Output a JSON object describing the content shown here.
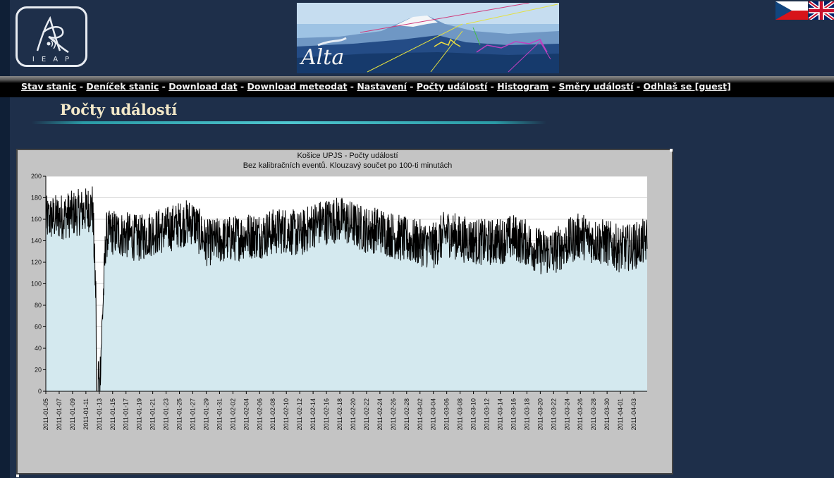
{
  "brand": {
    "logo_text": "IEAP",
    "banner_text": "Alta"
  },
  "flags": {
    "cz": "Czech flag",
    "uk": "UK flag"
  },
  "nav": {
    "items": [
      {
        "label": "Stav stanic"
      },
      {
        "label": "Deníček stanic"
      },
      {
        "label": "Download dat"
      },
      {
        "label": "Download meteodat"
      },
      {
        "label": "Nastavení"
      },
      {
        "label": "Počty událostí"
      },
      {
        "label": "Histogram"
      },
      {
        "label": "Směry událostí"
      },
      {
        "label": "Odhlaš se [guest]"
      }
    ],
    "separator": " - "
  },
  "page": {
    "title": "Počty událostí"
  },
  "colors": {
    "background": "#1e2f4a",
    "chart_frame": "#c4c4c4",
    "plot_fill": "#d4e9ef",
    "series": "#000000",
    "title_text": "#f2e8c8"
  },
  "chart_data": {
    "type": "line",
    "title": "Košice UPJS - Počty událostí",
    "subtitle": "Bez kalibračních eventů. Klouzavý součet po 100-ti minutách",
    "xlabel": "",
    "ylabel": "",
    "ylim": [
      0,
      200
    ],
    "yticks": [
      0,
      20,
      40,
      60,
      80,
      100,
      120,
      140,
      160,
      180,
      200
    ],
    "x_range": [
      "2011-01-05",
      "2011-04-05"
    ],
    "xticks": [
      "2011-01-05",
      "2011-01-07",
      "2011-01-09",
      "2011-01-11",
      "2011-01-13",
      "2011-01-15",
      "2011-01-17",
      "2011-01-19",
      "2011-01-21",
      "2011-01-23",
      "2011-01-25",
      "2011-01-27",
      "2011-01-29",
      "2011-01-31",
      "2011-02-02",
      "2011-02-04",
      "2011-02-06",
      "2011-02-08",
      "2011-02-10",
      "2011-02-12",
      "2011-02-14",
      "2011-02-16",
      "2011-02-18",
      "2011-02-20",
      "2011-02-22",
      "2011-02-24",
      "2011-02-26",
      "2011-02-28",
      "2011-03-02",
      "2011-03-04",
      "2011-03-06",
      "2011-03-08",
      "2011-03-10",
      "2011-03-12",
      "2011-03-14",
      "2011-03-16",
      "2011-03-18",
      "2011-03-20",
      "2011-03-22",
      "2011-03-24",
      "2011-03-26",
      "2011-03-28",
      "2011-03-30",
      "2011-04-01",
      "2011-04-03"
    ],
    "grid": true,
    "series": [
      {
        "x": [
          "2011-01-05",
          "2011-01-07",
          "2011-01-09",
          "2011-01-11",
          "2011-01-12",
          "2011-01-13",
          "2011-01-14",
          "2011-01-15",
          "2011-01-17",
          "2011-01-19",
          "2011-01-21",
          "2011-01-23",
          "2011-01-25",
          "2011-01-27",
          "2011-01-29",
          "2011-01-31",
          "2011-02-02",
          "2011-02-04",
          "2011-02-06",
          "2011-02-08",
          "2011-02-10",
          "2011-02-12",
          "2011-02-14",
          "2011-02-16",
          "2011-02-18",
          "2011-02-20",
          "2011-02-22",
          "2011-02-24",
          "2011-02-26",
          "2011-02-28",
          "2011-03-02",
          "2011-03-04",
          "2011-03-06",
          "2011-03-08",
          "2011-03-10",
          "2011-03-12",
          "2011-03-14",
          "2011-03-16",
          "2011-03-18",
          "2011-03-20",
          "2011-03-22",
          "2011-03-24",
          "2011-03-26",
          "2011-03-28",
          "2011-03-30",
          "2011-04-01",
          "2011-04-03",
          "2011-04-05"
        ],
        "y": [
          160,
          162,
          165,
          168,
          172,
          0,
          145,
          148,
          145,
          142,
          148,
          150,
          155,
          158,
          138,
          140,
          142,
          145,
          145,
          148,
          150,
          145,
          155,
          158,
          160,
          155,
          150,
          150,
          145,
          140,
          138,
          135,
          148,
          142,
          140,
          138,
          140,
          143,
          138,
          130,
          130,
          138,
          145,
          140,
          138,
          132,
          135,
          140
        ]
      }
    ]
  }
}
